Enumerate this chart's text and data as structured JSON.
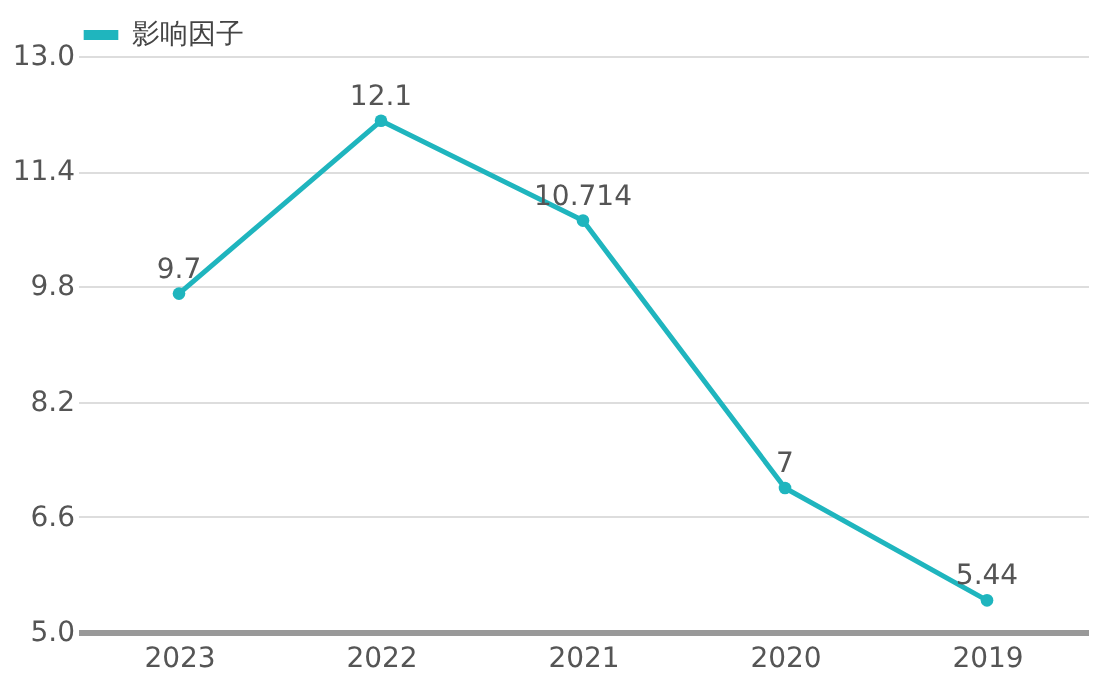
{
  "chart_data": {
    "type": "line",
    "categories": [
      "2023",
      "2022",
      "2021",
      "2020",
      "2019"
    ],
    "series": [
      {
        "name": "影响因子",
        "color": "#1fb5be",
        "values": [
          9.7,
          12.1,
          10.714,
          7,
          5.44
        ]
      }
    ],
    "ylim": [
      5.0,
      13.0
    ],
    "yticks": [
      {
        "value": 5,
        "label": "5.0"
      },
      {
        "value": 6.6,
        "label": "6.6"
      },
      {
        "value": 8.2,
        "label": "8.2"
      },
      {
        "value": 9.8,
        "label": "9.8"
      },
      {
        "value": 11.4,
        "label": "11.4"
      },
      {
        "value": 13,
        "label": "13.0"
      }
    ],
    "grid": "y",
    "legend": "top left",
    "marker": "circle",
    "line_style": "solid",
    "data_labels": true
  }
}
